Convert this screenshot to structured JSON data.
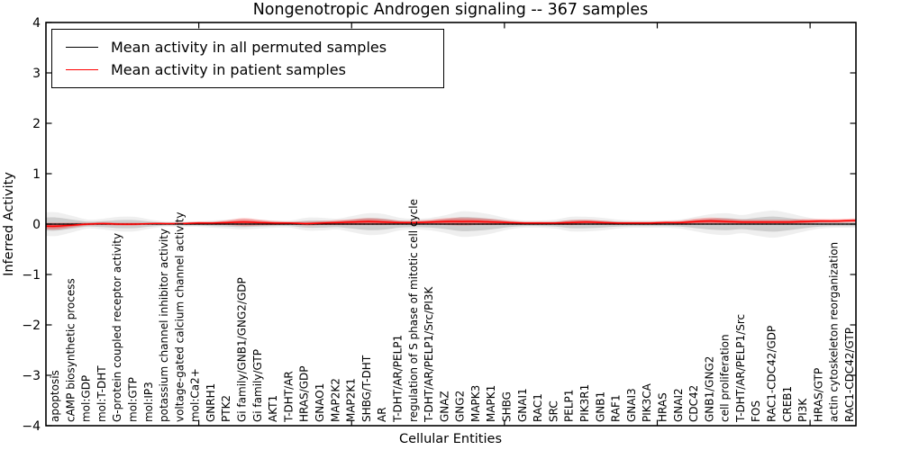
{
  "title": "Nongenotropic Androgen signaling -- 367 samples",
  "legend": {
    "entries": [
      {
        "label": "Mean activity in all permuted samples",
        "color": "#000000"
      },
      {
        "label": "Mean activity in patient samples",
        "color": "#ff0000"
      }
    ]
  },
  "axis": {
    "xlabel": "Cellular Entities",
    "ylabel": "Inferred Activity"
  },
  "chart_data": {
    "type": "line",
    "title": "Nongenotropic Androgen signaling -- 367 samples",
    "xlabel": "Cellular Entities",
    "ylabel": "Inferred Activity",
    "ylim": [
      -4,
      4
    ],
    "yticks": [
      4,
      3,
      2,
      1,
      0,
      -1,
      -2,
      -3,
      -4
    ],
    "xlim": [
      0,
      53
    ],
    "xticks_numeric": [
      10,
      20,
      30,
      40,
      50
    ],
    "grid": false,
    "legend_position": "upper left",
    "zero_reference_line": "dotted",
    "categories": [
      "apoptosis",
      "cAMP biosynthetic process",
      "mol:GDP",
      "mol:T-DHT",
      "G-protein coupled receptor activity",
      "mol:GTP",
      "mol:IP3",
      "potassium channel inhibitor activity",
      "voltage-gated calcium channel activity",
      "mol:Ca2+",
      "GNRH1",
      "PTK2",
      "Gi family/GNB1/GNG2/GDP",
      "Gi family/GTP",
      "AKT1",
      "T-DHT/AR",
      "HRAS/GDP",
      "GNAO1",
      "MAP2K2",
      "MAP2K1",
      "SHBG/T-DHT",
      "AR",
      "T-DHT/AR/PELP1",
      "regulation of S phase of mitotic cell cycle",
      "T-DHT/AR/PELP1/Src/PI3K",
      "GNAZ",
      "GNG2",
      "MAPK3",
      "MAPK1",
      "SHBG",
      "GNAI1",
      "RAC1",
      "SRC",
      "PELP1",
      "PIK3R1",
      "GNB1",
      "RAF1",
      "GNAI3",
      "PIK3CA",
      "HRAS",
      "GNAI2",
      "CDC42",
      "GNB1/GNG2",
      "cell proliferation",
      "T-DHT/AR/PELP1/Src",
      "FOS",
      "RAC1-CDC42/GDP",
      "CREB1",
      "PI3K",
      "HRAS/GTP",
      "actin cytoskeleton reorganization",
      "RAC1-CDC42/GTP"
    ],
    "series": [
      {
        "name": "Mean activity in all permuted samples",
        "color": "#000000",
        "values": [
          0,
          0,
          0,
          0,
          0,
          0,
          0,
          0,
          0,
          0,
          0,
          0,
          0,
          0,
          0,
          0,
          0,
          0,
          0,
          0,
          0,
          0,
          0,
          0,
          0,
          0,
          0,
          0,
          0,
          0,
          0,
          0,
          0,
          0,
          0,
          0,
          0,
          0,
          0,
          0,
          0,
          0,
          0,
          0,
          0,
          0,
          0,
          0,
          0,
          0,
          0,
          0
        ],
        "band_halfwidth": [
          0.13,
          0.09,
          0.05,
          0.06,
          0.08,
          0.08,
          0.05,
          0.03,
          0.03,
          0.03,
          0.04,
          0.05,
          0.06,
          0.05,
          0.04,
          0.04,
          0.07,
          0.07,
          0.06,
          0.09,
          0.12,
          0.11,
          0.07,
          0.06,
          0.07,
          0.1,
          0.14,
          0.13,
          0.1,
          0.06,
          0.04,
          0.04,
          0.05,
          0.08,
          0.08,
          0.07,
          0.05,
          0.04,
          0.04,
          0.04,
          0.05,
          0.08,
          0.11,
          0.12,
          0.1,
          0.13,
          0.15,
          0.12,
          0.08,
          0.05,
          0.04,
          0.04
        ]
      },
      {
        "name": "Mean activity in patient samples",
        "color": "#ff0000",
        "values": [
          -0.04,
          -0.02,
          0.0,
          0.01,
          0.0,
          0.0,
          0.01,
          0.01,
          0.01,
          0.02,
          0.02,
          0.03,
          0.04,
          0.03,
          0.02,
          0.02,
          0.01,
          0.02,
          0.03,
          0.04,
          0.05,
          0.04,
          0.03,
          0.03,
          0.04,
          0.05,
          0.05,
          0.05,
          0.04,
          0.03,
          0.02,
          0.02,
          0.02,
          0.03,
          0.04,
          0.03,
          0.02,
          0.02,
          0.02,
          0.03,
          0.03,
          0.05,
          0.06,
          0.05,
          0.04,
          0.04,
          0.04,
          0.04,
          0.05,
          0.06,
          0.06,
          0.07
        ],
        "band_halfwidth": [
          0.07,
          0.05,
          0.03,
          0.03,
          0.03,
          0.03,
          0.02,
          0.02,
          0.02,
          0.03,
          0.03,
          0.05,
          0.08,
          0.06,
          0.04,
          0.03,
          0.04,
          0.04,
          0.05,
          0.06,
          0.07,
          0.06,
          0.04,
          0.04,
          0.05,
          0.07,
          0.08,
          0.07,
          0.06,
          0.04,
          0.03,
          0.03,
          0.03,
          0.05,
          0.05,
          0.04,
          0.03,
          0.03,
          0.03,
          0.03,
          0.04,
          0.06,
          0.07,
          0.06,
          0.05,
          0.05,
          0.05,
          0.05,
          0.05,
          0.04,
          0.04,
          0.04
        ]
      }
    ]
  },
  "colors": {
    "frame": "#000000",
    "permuted_line": "#000000",
    "patient_line": "#ff0000",
    "permuted_band": "#808080",
    "patient_band": "#ff0000",
    "background": "#ffffff"
  }
}
